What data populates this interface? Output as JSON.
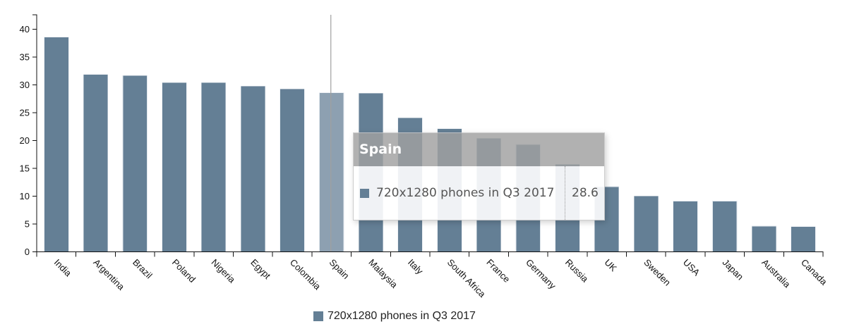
{
  "chart_data": {
    "type": "bar",
    "title": "",
    "xlabel": "",
    "ylabel": "",
    "ylim": [
      0,
      42.4
    ],
    "yticks": [
      0,
      5,
      10,
      15,
      20,
      25,
      30,
      35,
      40
    ],
    "grid": false,
    "legend_position": "bottom-center",
    "categories": [
      "India",
      "Argentina",
      "Brazil",
      "Poland",
      "Nigeria",
      "Egypt",
      "Colombia",
      "Spain",
      "Malaysia",
      "Italy",
      "South Africa",
      "France",
      "Germany",
      "Russia",
      "UK",
      "Sweden",
      "USA",
      "Japan",
      "Australia",
      "Canada"
    ],
    "series": [
      {
        "name": "720x1280 phones in Q3 2017",
        "color": "#647f95",
        "values": [
          38.6,
          31.9,
          31.7,
          30.4,
          30.4,
          29.8,
          29.3,
          28.6,
          28.5,
          24.1,
          22.1,
          20.4,
          19.3,
          15.7,
          11.7,
          10.0,
          9.1,
          9.1,
          4.6,
          4.5
        ]
      }
    ],
    "highlighted_category": "Spain",
    "highlight_color": "#8da0b1"
  },
  "legend": {
    "label": "720x1280 phones in Q3 2017",
    "color": "#647f95"
  },
  "tooltip": {
    "title": "Spain",
    "series_label": "720x1280 phones in Q3 2017",
    "value": "28.6",
    "swatch_color": "#647f95"
  }
}
